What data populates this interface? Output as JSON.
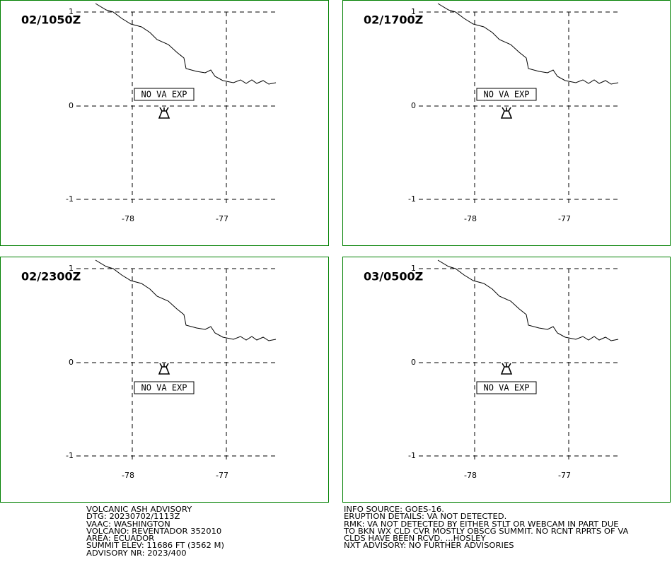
{
  "panels": [
    {
      "time": "02/1050Z",
      "status": "NO VA EXP"
    },
    {
      "time": "02/1700Z",
      "status": "NO VA EXP"
    },
    {
      "time": "02/2300Z",
      "status": "NO VA EXP"
    },
    {
      "time": "03/0500Z",
      "status": "NO VA EXP"
    }
  ],
  "axes": {
    "lat_labels": [
      "1",
      "0",
      "-1"
    ],
    "lon_labels": [
      "-78",
      "-77"
    ]
  },
  "advisory_left": [
    "VOLCANIC ASH ADVISORY",
    "DTG: 20230702/1113Z",
    "VAAC: WASHINGTON",
    "VOLCANO: REVENTADOR 352010",
    "AREA: ECUADOR",
    "SUMMIT ELEV: 11686 FT (3562 M)",
    "ADVISORY NR: 2023/400"
  ],
  "advisory_right": [
    "INFO SOURCE: GOES-16.",
    "ERUPTION DETAILS: VA NOT DETECTED.",
    "RMK: VA NOT DETECTED BY EITHER STLT OR WEBCAM IN PART DUE",
    "TO BKN WX CLD CVR MOSTLY OBSCG SUMMIT. NO RCNT RPRTS OF VA",
    "CLDS HAVE BEEN RCVD. ...HOSLEY",
    "NXT ADVISORY: NO FURTHER ADVISORIES"
  ]
}
